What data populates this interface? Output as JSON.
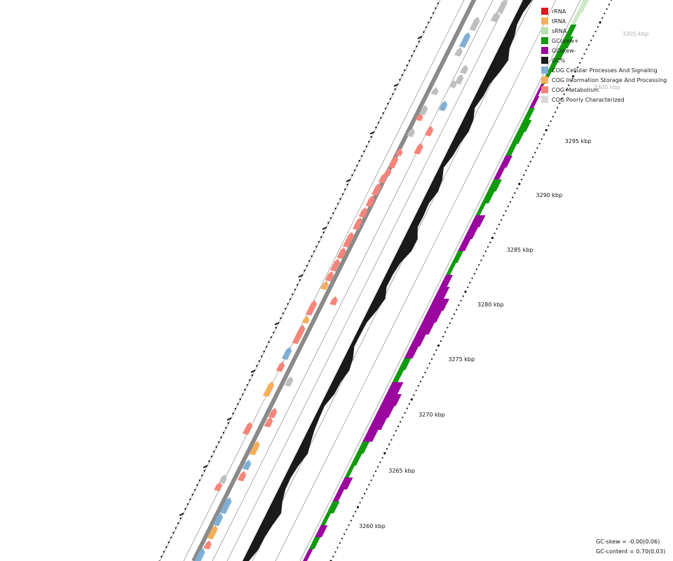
{
  "legend": [
    {
      "label": "rRNA",
      "color": "#d81b1b"
    },
    {
      "label": "tRNA",
      "color": "#f6ae5b"
    },
    {
      "label": "sRNA",
      "color": "#b9dfae"
    },
    {
      "label": "GCskew+",
      "color": "#129a0f"
    },
    {
      "label": "GCskew-",
      "color": "#9a069e"
    },
    {
      "label": "GC%",
      "color": "#1a1a1a"
    },
    {
      "label": "COG Cellular Processes And Signaling",
      "color": "#7fafd5"
    },
    {
      "label": "COG Information Storage And Processing",
      "color": "#f6ae5b"
    },
    {
      "label": "COG Metabolism",
      "color": "#f4857a"
    },
    {
      "label": "COG Poorly Characterized",
      "color": "#d9d9d9"
    }
  ],
  "scale_labels": [
    "3260 kbp",
    "3265 kbp",
    "3270 kbp",
    "3275 kbp",
    "3280 kbp",
    "3285 kbp",
    "3290 kbp",
    "3295 kbp",
    "3300 kbp",
    "3305 kbp"
  ],
  "stats": {
    "gc_skew": "GC-skew = -0.00(0.06)",
    "gc_content": "GC-content = 0.70(0.03)"
  }
}
